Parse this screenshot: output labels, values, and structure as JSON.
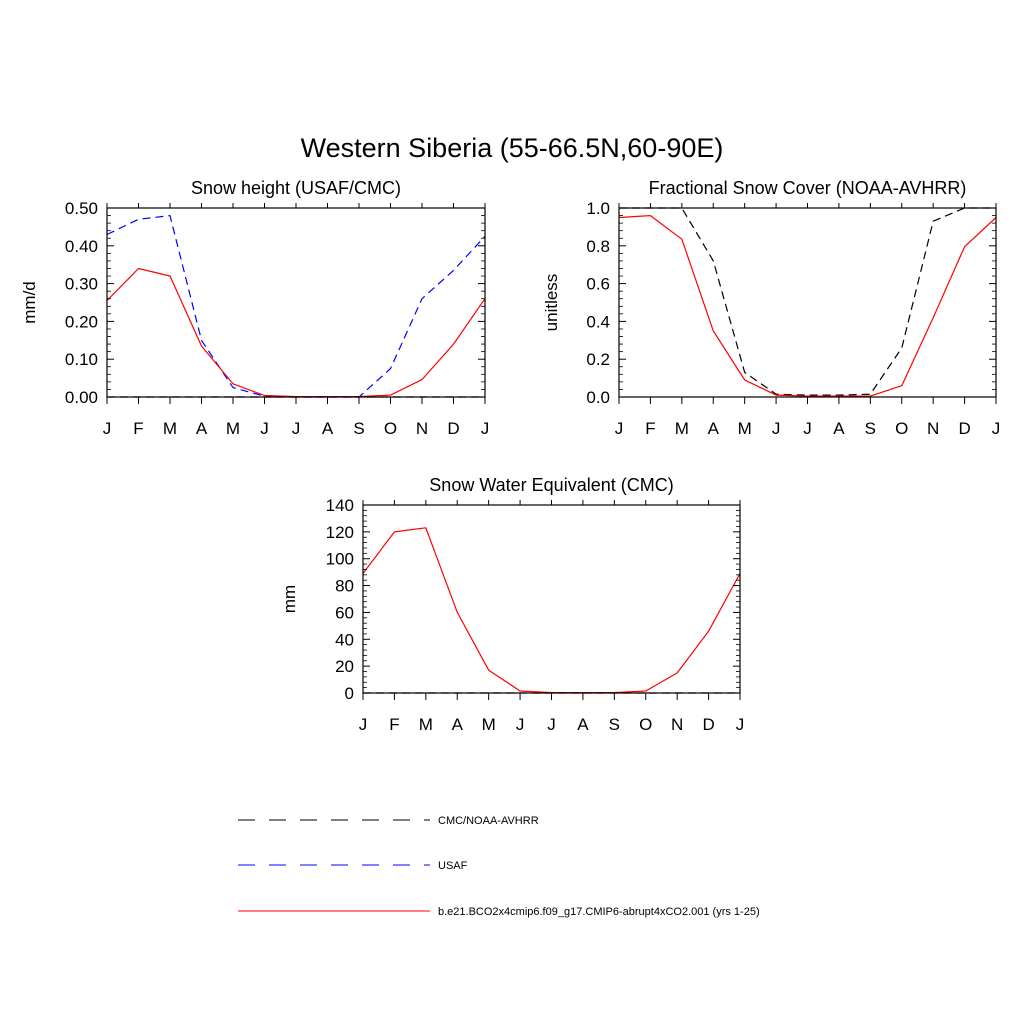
{
  "figure": {
    "title": "Western Siberia (55-66.5N,60-90E)"
  },
  "chart_data": [
    {
      "type": "line",
      "title": "Snow height (USAF/CMC)",
      "xlabel": "",
      "ylabel": "mm/d",
      "categories": [
        "J",
        "F",
        "M",
        "A",
        "M",
        "J",
        "J",
        "A",
        "S",
        "O",
        "N",
        "D",
        "J"
      ],
      "ylim": [
        0,
        0.5
      ],
      "yticks": [
        "0.00",
        "0.10",
        "0.20",
        "0.30",
        "0.40",
        "0.50"
      ],
      "grid": false,
      "series": [
        {
          "name": "CMC/NOAA-AVHRR",
          "color": "#000000",
          "dash": "dashed",
          "values": [
            0,
            0,
            0,
            0,
            0,
            0,
            0,
            0,
            0,
            0,
            0,
            0,
            0
          ]
        },
        {
          "name": "USAF",
          "color": "#0000ff",
          "dash": "dashed",
          "values": [
            0.43,
            0.47,
            0.48,
            0.15,
            0.025,
            0.002,
            0,
            0,
            0,
            0.075,
            0.26,
            0.335,
            0.425
          ]
        },
        {
          "name": "b.e21.BCO2x4cmip6.f09_g17.CMIP6-abrupt4xCO2.001 (yrs 1-25)",
          "color": "#ff0000",
          "dash": "solid",
          "values": [
            0.255,
            0.34,
            0.32,
            0.135,
            0.035,
            0.004,
            0.001,
            0.001,
            0.001,
            0.005,
            0.046,
            0.14,
            0.26
          ]
        }
      ]
    },
    {
      "type": "line",
      "title": "Fractional Snow Cover (NOAA-AVHRR)",
      "xlabel": "",
      "ylabel": "unitless",
      "categories": [
        "J",
        "F",
        "M",
        "A",
        "M",
        "J",
        "J",
        "A",
        "S",
        "O",
        "N",
        "D",
        "J"
      ],
      "ylim": [
        0,
        1.0
      ],
      "yticks": [
        "0.0",
        "0.2",
        "0.4",
        "0.6",
        "0.8",
        "1.0"
      ],
      "grid": false,
      "series": [
        {
          "name": "CMC/NOAA-AVHRR",
          "color": "#000000",
          "dash": "dashed",
          "values": [
            1.0,
            1.0,
            1.0,
            0.72,
            0.13,
            0.015,
            0.01,
            0.01,
            0.015,
            0.26,
            0.93,
            1.0,
            1.0
          ]
        },
        {
          "name": "b.e21.BCO2x4cmip6.f09_g17.CMIP6-abrupt4xCO2.001 (yrs 1-25)",
          "color": "#ff0000",
          "dash": "solid",
          "values": [
            0.95,
            0.96,
            0.835,
            0.35,
            0.09,
            0.01,
            0.005,
            0.005,
            0.005,
            0.06,
            0.42,
            0.795,
            0.95
          ]
        }
      ]
    },
    {
      "type": "line",
      "title": "Snow Water Equivalent (CMC)",
      "xlabel": "",
      "ylabel": "mm",
      "categories": [
        "J",
        "F",
        "M",
        "A",
        "M",
        "J",
        "J",
        "A",
        "S",
        "O",
        "N",
        "D",
        "J"
      ],
      "ylim": [
        0,
        140
      ],
      "yticks": [
        "0",
        "20",
        "40",
        "60",
        "80",
        "100",
        "120",
        "140"
      ],
      "grid": false,
      "series": [
        {
          "name": "CMC/NOAA-AVHRR",
          "color": "#000000",
          "dash": "dashed",
          "values": [
            0,
            0,
            0,
            0,
            0,
            0,
            0,
            0,
            0,
            0,
            0,
            0,
            0
          ]
        },
        {
          "name": "b.e21.BCO2x4cmip6.f09_g17.CMIP6-abrupt4xCO2.001 (yrs 1-25)",
          "color": "#ff0000",
          "dash": "solid",
          "values": [
            89,
            120,
            123,
            60,
            17,
            1.5,
            0.3,
            0.3,
            0.3,
            1.5,
            15,
            46,
            89
          ]
        }
      ]
    }
  ],
  "legend": {
    "placement": "bottom-center",
    "items": [
      {
        "label": "CMC/NOAA-AVHRR",
        "color": "#000000",
        "dash": "dashed"
      },
      {
        "label": "USAF",
        "color": "#0000ff",
        "dash": "dashed"
      },
      {
        "label": "b.e21.BCO2x4cmip6.f09_g17.CMIP6-abrupt4xCO2.001 (yrs 1-25)",
        "color": "#ff0000",
        "dash": "solid"
      }
    ]
  }
}
